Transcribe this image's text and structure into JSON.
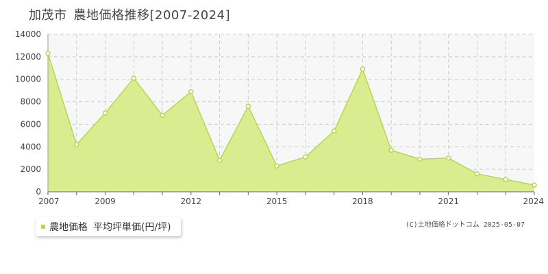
{
  "header": {
    "city": "加茂市",
    "title": "農地価格推移[2007-2024]"
  },
  "legend": {
    "series_name": "農地価格",
    "unit_label": "平均坪単価(円/坪)"
  },
  "credit": "(C)土地価格ドットコム 2025-05-07",
  "colors": {
    "fill": "#d9ec8f",
    "line": "#b5d94a",
    "plot_bg": "#f7f7f7",
    "grid": "#cccccc"
  },
  "chart_data": {
    "type": "area",
    "title": "農地価格推移[2007-2024]",
    "x": [
      2007,
      2008,
      2009,
      2010,
      2011,
      2012,
      2013,
      2014,
      2015,
      2016,
      2017,
      2018,
      2019,
      2020,
      2021,
      2022,
      2023,
      2024
    ],
    "x_tick_labels": [
      "2007",
      "2009",
      "2012",
      "2015",
      "2018",
      "2021",
      "2024"
    ],
    "y_ticks": [
      0,
      2000,
      4000,
      6000,
      8000,
      10000,
      12000,
      14000
    ],
    "ylim": [
      0,
      14000
    ],
    "grid": true,
    "legend_position": "bottom-left",
    "series": [
      {
        "name": "農地価格",
        "values": [
          12300,
          4200,
          7000,
          10100,
          6800,
          8900,
          2800,
          7600,
          2300,
          3100,
          5400,
          10900,
          3700,
          2900,
          3000,
          1600,
          1100,
          600
        ]
      }
    ]
  }
}
